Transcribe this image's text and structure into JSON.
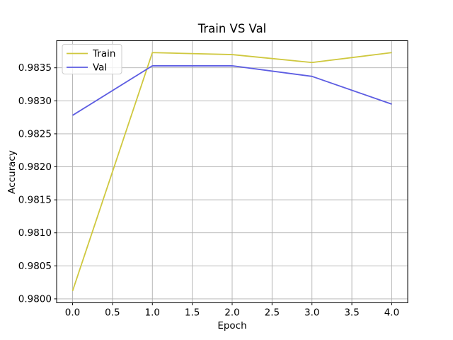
{
  "chart_data": {
    "type": "line",
    "title": "Train VS Val",
    "xlabel": "Epoch",
    "ylabel": "Accuracy",
    "x": [
      0,
      1,
      2,
      3,
      4
    ],
    "series": [
      {
        "name": "Train",
        "color": "#cfc83f",
        "values": [
          0.98012,
          0.98373,
          0.9837,
          0.98358,
          0.98373
        ]
      },
      {
        "name": "Val",
        "color": "#5d5de2",
        "values": [
          0.98278,
          0.98353,
          0.98353,
          0.98337,
          0.98295
        ]
      }
    ],
    "xlim": [
      -0.2,
      4.2
    ],
    "ylim": [
      0.97994,
      0.98391
    ],
    "xticks": [
      0.0,
      0.5,
      1.0,
      1.5,
      2.0,
      2.5,
      3.0,
      3.5,
      4.0
    ],
    "xtick_labels": [
      "0.0",
      "0.5",
      "1.0",
      "1.5",
      "2.0",
      "2.5",
      "3.0",
      "3.5",
      "4.0"
    ],
    "yticks": [
      0.98,
      0.9805,
      0.981,
      0.9815,
      0.982,
      0.9825,
      0.983,
      0.9835
    ],
    "ytick_labels": [
      "0.9800",
      "0.9805",
      "0.9810",
      "0.9815",
      "0.9820",
      "0.9825",
      "0.9830",
      "0.9835"
    ],
    "grid": true,
    "grid_color": "#b0b0b0",
    "frame_color": "#000000",
    "tick_color": "#000000",
    "text_color": "#000000",
    "legend_position": "upper left",
    "legend_border_color": "#cccccc",
    "legend_background": "rgba(255,255,255,0.8)",
    "legend": [
      "Train",
      "Val"
    ]
  }
}
